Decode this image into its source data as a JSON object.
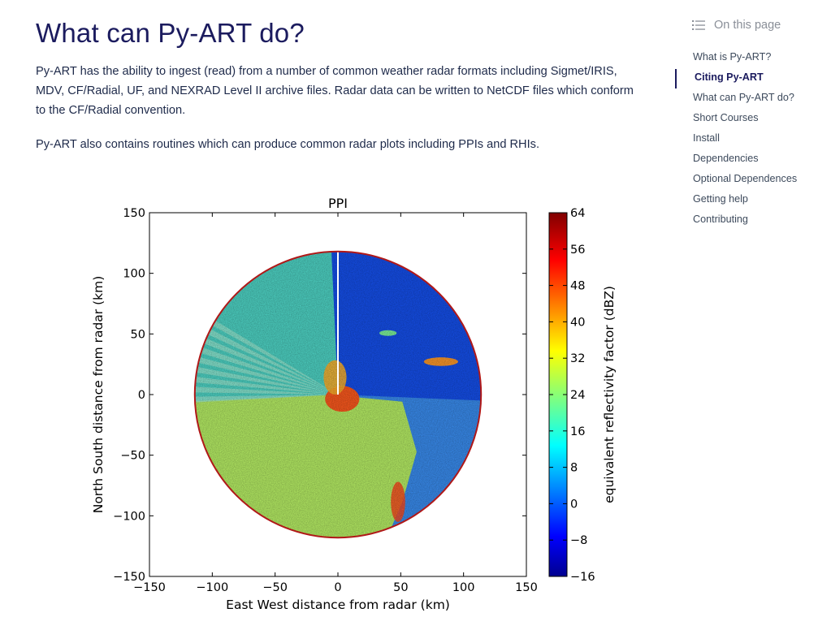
{
  "page": {
    "title": "What can Py-ART do?",
    "paragraphs": [
      "Py-ART has the ability to ingest (read) from a number of common weather radar formats including Sigmet/IRIS, MDV, CF/Radial, UF, and NEXRAD Level II archive files. Radar data can be written to NetCDF files which conform to the CF/Radial convention.",
      "Py-ART also contains routines which can produce common radar plots including PPIs and RHIs."
    ]
  },
  "toc": {
    "heading": "On this page",
    "icon": "list-icon",
    "items": [
      {
        "label": "What is Py-ART?",
        "active": false
      },
      {
        "label": "Citing Py-ART",
        "active": true
      },
      {
        "label": "What can Py-ART do?",
        "active": false
      },
      {
        "label": "Short Courses",
        "active": false
      },
      {
        "label": "Install",
        "active": false
      },
      {
        "label": "Dependencies",
        "active": false
      },
      {
        "label": "Optional Dependences",
        "active": false
      },
      {
        "label": "Getting help",
        "active": false
      },
      {
        "label": "Contributing",
        "active": false
      }
    ]
  },
  "chart_data": {
    "type": "heatmap",
    "title": "PPI",
    "xlabel": "East West distance from radar (km)",
    "ylabel": "North South distance from radar (km)",
    "xlim": [
      -150,
      150
    ],
    "ylim": [
      -150,
      150
    ],
    "xticks": [
      "−150",
      "−100",
      "−50",
      "0",
      "50",
      "100",
      "150"
    ],
    "yticks": [
      "150",
      "100",
      "50",
      "0",
      "−50",
      "−100",
      "−150"
    ],
    "range_ring_km": 118,
    "colorbar": {
      "label": "equivalent reflectivity factor (dBZ)",
      "min": -16,
      "max": 64,
      "ticks": [
        "64",
        "56",
        "48",
        "40",
        "32",
        "24",
        "16",
        "8",
        "0",
        "−8",
        "−16"
      ],
      "colormap": "jet"
    },
    "colors": {
      "ring": "#b01818",
      "axis": "#000000"
    }
  }
}
